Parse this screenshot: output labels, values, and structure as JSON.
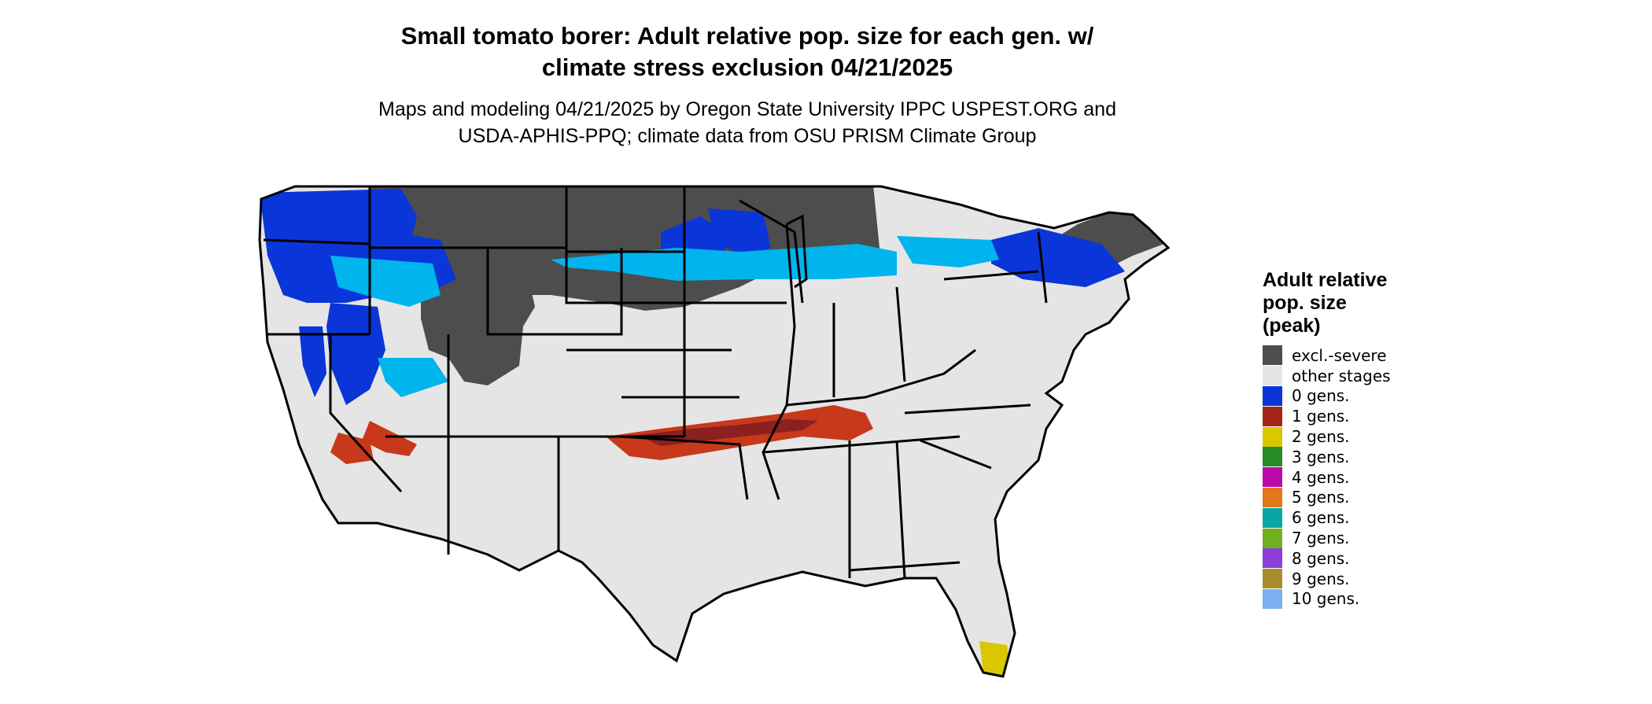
{
  "title_lines": [
    "Small tomato borer: Adult relative pop. size for each gen. w/",
    "climate stress exclusion 04/21/2025"
  ],
  "subtitle_lines": [
    "Maps and modeling 04/21/2025 by Oregon State University IPPC USPEST.ORG and",
    "USDA-APHIS-PPQ; climate data from OSU PRISM Climate Group"
  ],
  "legend": {
    "title_lines": [
      "Adult relative",
      "pop. size",
      "(peak)"
    ],
    "items": [
      {
        "label": "excl.-severe",
        "color": "#4d4d4d"
      },
      {
        "label": "other stages",
        "color": "#e5e5e5"
      },
      {
        "label": "0 gens.",
        "color": "#0a35d8"
      },
      {
        "label": "1 gens.",
        "color": "#a32517"
      },
      {
        "label": "2 gens.",
        "color": "#d9c700"
      },
      {
        "label": "3 gens.",
        "color": "#268a26"
      },
      {
        "label": "4 gens.",
        "color": "#b90aa8"
      },
      {
        "label": "5 gens.",
        "color": "#e1771a"
      },
      {
        "label": "6 gens.",
        "color": "#0aa5a5"
      },
      {
        "label": "7 gens.",
        "color": "#6fb01d"
      },
      {
        "label": "8 gens.",
        "color": "#8a3fdc"
      },
      {
        "label": "9 gens.",
        "color": "#a88e2a"
      },
      {
        "label": "10 gens.",
        "color": "#7ab0f0"
      }
    ]
  }
}
